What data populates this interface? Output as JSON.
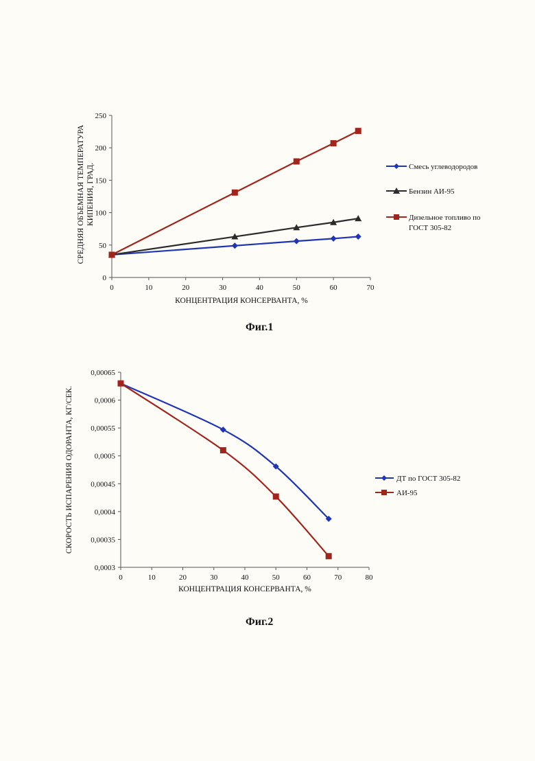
{
  "figures": [
    {
      "caption": "Фиг.1"
    },
    {
      "caption": "Фиг.2"
    }
  ],
  "chart_data": [
    {
      "type": "line",
      "xlabel": "КОНЦЕНТРАЦИЯ КОНСЕРВАНТА, %",
      "ylabel_lines": [
        "СРЕДНЯЯ ОБЪЕМНАЯ ТЕМПЕРАТУРА",
        "КИПЕНИЯ, ГРАД."
      ],
      "xlim": [
        0,
        70
      ],
      "ylim": [
        0,
        250
      ],
      "xticks": [
        "0",
        "10",
        "20",
        "30",
        "40",
        "50",
        "60",
        "70"
      ],
      "yticks": [
        "0",
        "50",
        "100",
        "150",
        "200",
        "250"
      ],
      "grid": false,
      "legend_position": "right",
      "series": [
        {
          "name": "Смесь углеводородов",
          "color": "#1f35b4",
          "marker": "diamond",
          "x": [
            0,
            33.3,
            50,
            60,
            66.7
          ],
          "y": [
            35,
            49,
            56,
            60,
            63
          ]
        },
        {
          "name": "Бензин АИ-95",
          "color": "#2b2b2b",
          "marker": "triangle",
          "x": [
            0,
            33.3,
            50,
            60,
            66.7
          ],
          "y": [
            35,
            63,
            77,
            85,
            91
          ]
        },
        {
          "name_lines": [
            "Дизельное топливо по",
            "ГОСТ 305-82"
          ],
          "color": "#a0251c",
          "marker": "square",
          "x": [
            0,
            33.3,
            50,
            60,
            66.7
          ],
          "y": [
            35,
            131,
            179,
            207,
            226
          ]
        }
      ]
    },
    {
      "type": "line",
      "xlabel": "КОНЦЕНТРАЦИЯ КОНСЕРВАНТА, %",
      "ylabel": "СКОРОСТЬ ИСПАРЕНИЯ ОДОРАНТА, КГ/СЕК.",
      "xlim": [
        0,
        80
      ],
      "ylim": [
        0.0003,
        0.00065
      ],
      "xticks": [
        "0",
        "10",
        "20",
        "30",
        "40",
        "50",
        "60",
        "70",
        "80"
      ],
      "yticks": [
        "0,0003",
        "0,00035",
        "0,0004",
        "0,00045",
        "0,0005",
        "0,00055",
        "0,0006",
        "0,00065"
      ],
      "grid": false,
      "legend_position": "right",
      "series": [
        {
          "name": "ДТ по ГОСТ 305-82",
          "color": "#1f35b4",
          "marker": "diamond",
          "x": [
            0,
            33,
            50,
            67
          ],
          "y": [
            0.00063,
            0.000547,
            0.000481,
            0.000387
          ]
        },
        {
          "name": "АИ-95",
          "color": "#a0251c",
          "marker": "square",
          "x": [
            0,
            33,
            50,
            67
          ],
          "y": [
            0.00063,
            0.00051,
            0.000427,
            0.00032
          ]
        }
      ]
    }
  ]
}
